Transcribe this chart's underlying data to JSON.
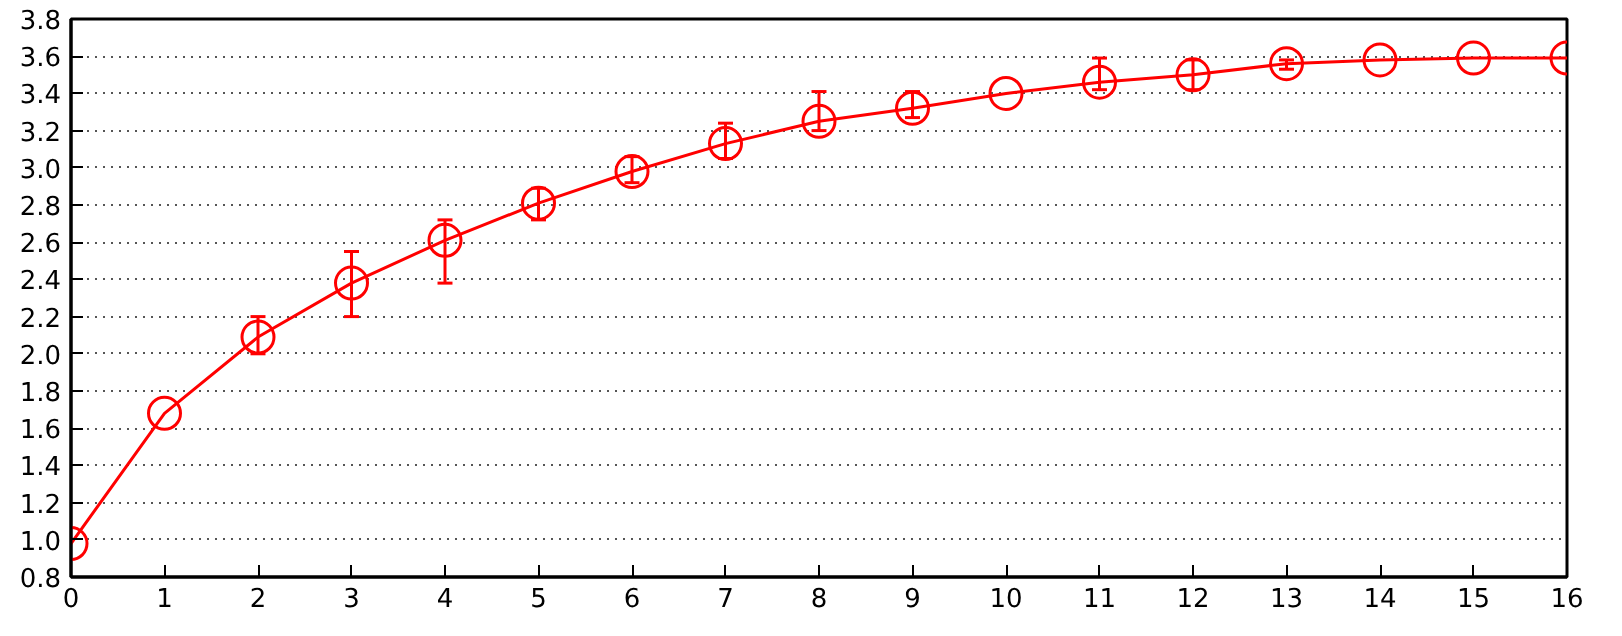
{
  "chart_data": {
    "type": "line",
    "x": [
      0,
      1,
      2,
      3,
      4,
      5,
      6,
      7,
      8,
      9,
      10,
      11,
      12,
      13,
      14,
      15,
      16
    ],
    "series": [
      {
        "color": "#ff0000",
        "values": [
          0.98,
          1.68,
          2.09,
          2.38,
          2.61,
          2.81,
          2.98,
          3.13,
          3.25,
          3.32,
          3.4,
          3.46,
          3.5,
          3.56,
          3.58,
          3.59,
          3.59
        ],
        "errors": [
          null,
          null,
          [
            2.0,
            2.2
          ],
          [
            2.2,
            2.55
          ],
          [
            2.38,
            2.72
          ],
          [
            2.72,
            2.89
          ],
          [
            2.92,
            3.06
          ],
          [
            3.05,
            3.24
          ],
          [
            3.2,
            3.41
          ],
          [
            3.27,
            3.41
          ],
          null,
          [
            3.42,
            3.59
          ],
          [
            3.42,
            3.58
          ],
          [
            3.53,
            3.58
          ],
          null,
          null,
          null
        ]
      }
    ],
    "xlim": [
      0,
      16
    ],
    "ylim": [
      0.8,
      3.8
    ],
    "xticks": [
      0,
      1,
      2,
      3,
      4,
      5,
      6,
      7,
      8,
      9,
      10,
      11,
      12,
      13,
      14,
      15,
      16
    ],
    "yticks": [
      {
        "value": 0.8,
        "label": "0.8"
      },
      {
        "value": 1.0,
        "label": "1.0"
      },
      {
        "value": 1.2,
        "label": "1.2"
      },
      {
        "value": 1.4,
        "label": "1.4"
      },
      {
        "value": 1.6,
        "label": "1.6"
      },
      {
        "value": 1.8,
        "label": "1.8"
      },
      {
        "value": 2.0,
        "label": "2.0"
      },
      {
        "value": 2.2,
        "label": "2.2"
      },
      {
        "value": 2.4,
        "label": "2.4"
      },
      {
        "value": 2.6,
        "label": "2.6"
      },
      {
        "value": 2.8,
        "label": "2.8"
      },
      {
        "value": 3.0,
        "label": "3.0"
      },
      {
        "value": 3.2,
        "label": "3.2"
      },
      {
        "value": 3.4,
        "label": "3.4"
      },
      {
        "value": 3.6,
        "label": "3.6"
      },
      {
        "value": 3.8,
        "label": "3.8"
      }
    ],
    "grid": "y",
    "marker": "circle",
    "line_style": "solid"
  }
}
